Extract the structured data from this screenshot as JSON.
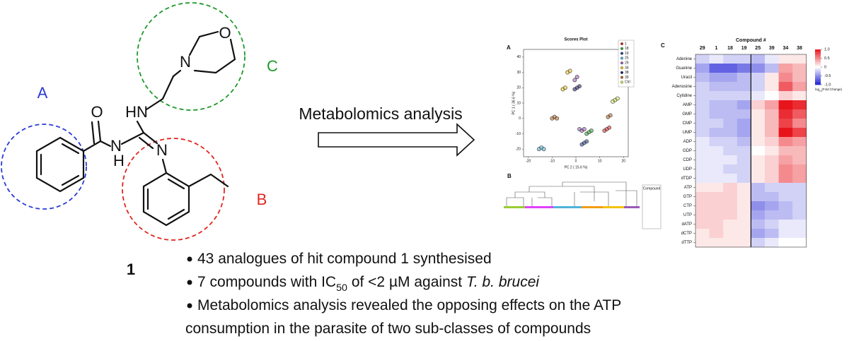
{
  "structure": {
    "region_labels": [
      "A",
      "B",
      "C"
    ],
    "atoms": [
      "O",
      "HN",
      "N",
      "H",
      "N",
      "N",
      "O"
    ],
    "compound": "1"
  },
  "arrow_label": "Metabolomics analysis",
  "bullets": [
    {
      "parts": [
        {
          "text": "43 analogues of hit compound 1 synthesised"
        }
      ]
    },
    {
      "parts": [
        {
          "text": "7 compounds with IC"
        },
        {
          "text": "50",
          "sub": true
        },
        {
          "text": " of <2 µM against "
        },
        {
          "text": "T. b. brucei",
          "italic": true
        }
      ]
    },
    {
      "parts": [
        {
          "text": "Metabolomics analysis revealed the opposing effects on the ATP"
        }
      ]
    },
    {
      "parts": [
        {
          "text": "consumption in the parasite of two sub-classes of compounds"
        }
      ],
      "continued": true
    }
  ],
  "scores_plot": {
    "type": "scatter",
    "panel": "A",
    "title": "Scores Plot",
    "xlabel": "PC 2 ( 15.6 %)",
    "ylabel": "PC 1 ( 36.6 %)",
    "xlim": [
      -22,
      22
    ],
    "ylim": [
      -25,
      45
    ],
    "xticks": [
      -20,
      -10,
      0,
      10,
      20
    ],
    "yticks": [
      -20,
      -10,
      0,
      10,
      20,
      30,
      40
    ],
    "series": [
      {
        "name": "1",
        "color": "#d62728",
        "x": [
          12,
          13,
          14
        ],
        "y": [
          -8,
          -7,
          -6
        ]
      },
      {
        "name": "18",
        "color": "#2ca02c",
        "x": [
          4.5,
          5.5,
          6.5
        ],
        "y": [
          -10,
          -9,
          -8
        ]
      },
      {
        "name": "19",
        "color": "#1f3b8a",
        "x": [
          2.5,
          3.5,
          4.5
        ],
        "y": [
          -17,
          -16,
          -15
        ]
      },
      {
        "name": "25",
        "color": "#4fb3d9",
        "x": [
          -15.5,
          -14.5,
          -13.5
        ],
        "y": [
          -20,
          -19,
          -20
        ]
      },
      {
        "name": "29",
        "color": "#9b59b6",
        "x": [
          1.5,
          2.5,
          3.5,
          -0.5,
          0.5
        ],
        "y": [
          -7,
          -8,
          -7,
          25,
          27
        ]
      },
      {
        "name": "34",
        "color": "#f1c40f",
        "x": [
          -5.5,
          -4.5,
          -3.5,
          -2.5
        ],
        "y": [
          19,
          20,
          30,
          31
        ]
      },
      {
        "name": "38",
        "color": "#1a1a5e",
        "x": [
          -0.5,
          0.5,
          1.5
        ],
        "y": [
          19,
          20,
          21
        ]
      },
      {
        "name": "39",
        "color": "#b5651d",
        "x": [
          -10,
          -9,
          -8,
          13.5,
          14.5
        ],
        "y": [
          0,
          1,
          0,
          1,
          2
        ]
      },
      {
        "name": "Ctrl",
        "color": "#d4e157",
        "x": [
          15.5,
          16.5,
          17.5
        ],
        "y": [
          11,
          12,
          13
        ]
      }
    ]
  },
  "dendrogram": {
    "panel": "B",
    "legend_title": "Compound"
  },
  "heatmap": {
    "type": "heatmap",
    "panel": "C",
    "title": "Compound #",
    "columns": [
      "29",
      "1",
      "18",
      "19",
      "25",
      "39",
      "34",
      "38"
    ],
    "rows": [
      "Adenine",
      "Guanine",
      "Uracil",
      "Adenosine",
      "Cytidine",
      "AMP",
      "GMP",
      "CMP",
      "UMP",
      "ADP",
      "GDP",
      "CDP",
      "UDP",
      "dTDP",
      "ATP",
      "GTP",
      "CTP",
      "UTP",
      "dATP",
      "dCTP",
      "dTTP"
    ],
    "values": [
      [
        -0.2,
        -0.1,
        -0.2,
        -0.2,
        -0.3,
        -0.1,
        0.1,
        0.1
      ],
      [
        -0.4,
        -0.7,
        -0.7,
        -0.6,
        -0.5,
        -0.3,
        0.4,
        0.3
      ],
      [
        -0.3,
        -0.4,
        -0.4,
        -0.3,
        -0.2,
        0.1,
        0.5,
        0.3
      ],
      [
        -0.2,
        -0.3,
        -0.3,
        -0.3,
        -0.2,
        0.1,
        0.7,
        0.4
      ],
      [
        -0.2,
        -0.2,
        -0.2,
        -0.2,
        -0.1,
        0,
        0.2,
        0.1
      ],
      [
        -0.2,
        -0.3,
        -0.3,
        -0.4,
        0.2,
        0.4,
        1.0,
        0.9
      ],
      [
        -0.2,
        -0.3,
        -0.3,
        -0.3,
        0.1,
        0.3,
        0.9,
        0.7
      ],
      [
        -0.2,
        -0.2,
        -0.3,
        -0.4,
        0.1,
        0.3,
        0.8,
        0.5
      ],
      [
        -0.2,
        -0.3,
        -0.3,
        -0.4,
        0.1,
        0.3,
        1.0,
        0.8
      ],
      [
        -0.1,
        -0.2,
        -0.2,
        -0.3,
        0.1,
        0.2,
        0.5,
        0.4
      ],
      [
        -0.1,
        -0.1,
        -0.2,
        -0.2,
        0,
        0.1,
        0.3,
        0.3
      ],
      [
        -0.1,
        -0.1,
        -0.1,
        -0.2,
        0.1,
        0.2,
        0.4,
        0.3
      ],
      [
        -0.1,
        -0.1,
        -0.2,
        -0.2,
        0.1,
        0.2,
        0.5,
        0.4
      ],
      [
        -0.1,
        -0.1,
        -0.1,
        -0.2,
        0.1,
        0.2,
        0.5,
        0.4
      ],
      [
        0.1,
        0.1,
        0.2,
        0.1,
        -0.3,
        -0.2,
        -0.2,
        -0.2
      ],
      [
        0.2,
        0.2,
        0.2,
        0.1,
        -0.3,
        -0.3,
        -0.2,
        -0.2
      ],
      [
        0.2,
        0.2,
        0.2,
        0.1,
        -0.5,
        -0.4,
        -0.3,
        -0.2
      ],
      [
        0.2,
        0.2,
        0.2,
        0.1,
        -0.4,
        -0.3,
        -0.3,
        -0.2
      ],
      [
        0.2,
        0.2,
        0.1,
        0.1,
        -0.3,
        -0.2,
        -0.1,
        -0.1
      ],
      [
        0.1,
        0.2,
        0.1,
        0.1,
        -0.4,
        -0.3,
        -0.1,
        -0.1
      ],
      [
        0.1,
        0.1,
        0.1,
        0.1,
        -0.2,
        -0.1,
        0,
        0
      ]
    ],
    "clim": [
      -1,
      1
    ],
    "high_color": "#e8141c",
    "low_color": "#1f1fd6",
    "cticks": [
      {
        "value": 1,
        "label": "1.0"
      },
      0.5,
      0,
      -0.5,
      {
        "value": -1,
        "label": "-1.0"
      }
    ],
    "colorbar_label": {
      "parts": [
        {
          "text": "log"
        },
        {
          "text": "10",
          "sub": true
        },
        {
          "text": "(Fold Change)"
        }
      ]
    }
  }
}
